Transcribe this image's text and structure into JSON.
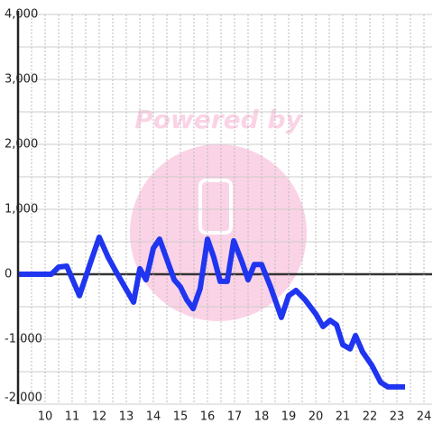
{
  "chart_data": {
    "type": "line",
    "watermark": "Powered by",
    "x": [
      9.0,
      10.23,
      10.5,
      10.8,
      11.27,
      11.67,
      12.0,
      12.33,
      12.6,
      13.27,
      13.5,
      13.73,
      14.0,
      14.23,
      14.77,
      15.0,
      15.23,
      15.47,
      15.73,
      16.0,
      16.23,
      16.47,
      16.73,
      16.97,
      17.27,
      17.5,
      17.73,
      18.0,
      18.33,
      18.73,
      19.0,
      19.27,
      19.6,
      20.0,
      20.27,
      20.53,
      20.77,
      21.0,
      21.27,
      21.47,
      21.73,
      22.07,
      22.4,
      22.67,
      23.3
    ],
    "series": [
      {
        "color": "#1f35f0",
        "values": [
          0,
          0,
          110,
          125,
          -330,
          170,
          570,
          260,
          55,
          -430,
          85,
          -85,
          400,
          540,
          -85,
          -195,
          -390,
          -530,
          -220,
          540,
          265,
          -110,
          -110,
          515,
          195,
          -85,
          150,
          150,
          -195,
          -665,
          -330,
          -250,
          -390,
          -610,
          -805,
          -710,
          -780,
          -1085,
          -1150,
          -945,
          -1195,
          -1400,
          -1665,
          -1735,
          -1735
        ]
      }
    ],
    "xlim": [
      9,
      24.3
    ],
    "ylim": [
      -2000,
      4000
    ],
    "xticks": [
      10,
      11,
      12,
      13,
      14,
      15,
      16,
      17,
      18,
      19,
      20,
      21,
      22,
      23,
      24
    ],
    "minor_xticks": [
      9.5,
      10.5,
      11.5,
      12.5,
      13.5,
      14.5,
      15.5,
      16.5,
      17.5,
      18.5,
      19.5,
      20.5,
      21.5,
      22.5,
      23.5
    ],
    "yticks": [
      {
        "value": -2000,
        "label": "-2,000"
      },
      {
        "value": -1000,
        "label": "-1,000"
      },
      0,
      {
        "value": 1000,
        "label": "1,000"
      },
      {
        "value": 2000,
        "label": "2,000"
      },
      {
        "value": 3000,
        "label": "3,000"
      },
      {
        "value": 4000,
        "label": "4,000"
      }
    ],
    "minor_yticks": [
      -1500,
      -500,
      500,
      1500,
      2500,
      3500
    ],
    "grid": true
  }
}
